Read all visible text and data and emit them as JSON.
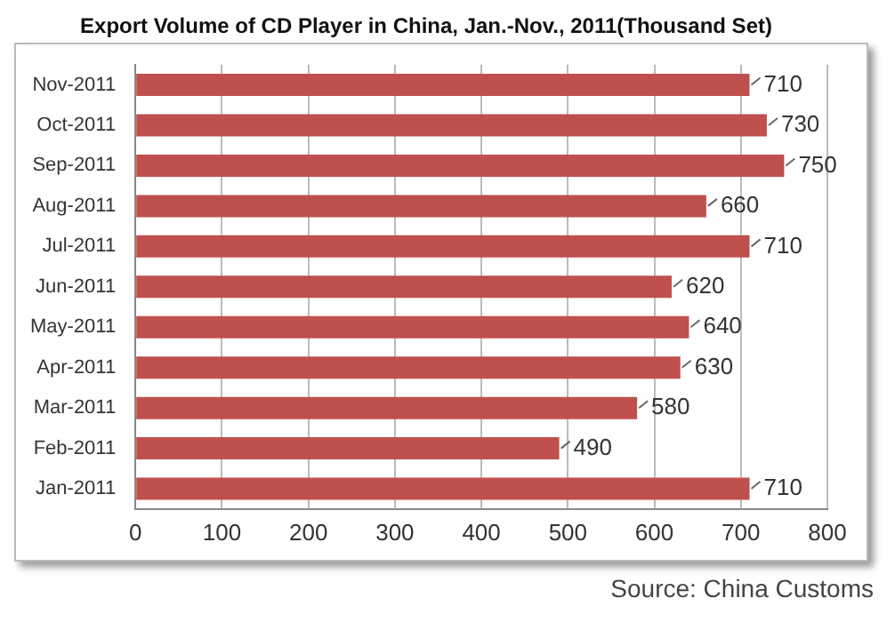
{
  "chart_data": {
    "type": "bar",
    "orientation": "horizontal",
    "title": "Export Volume of CD Player in China, Jan.-Nov., 2011(Thousand Set)",
    "categories": [
      "Nov-2011",
      "Oct-2011",
      "Sep-2011",
      "Aug-2011",
      "Jul-2011",
      "Jun-2011",
      "May-2011",
      "Apr-2011",
      "Mar-2011",
      "Feb-2011",
      "Jan-2011"
    ],
    "values": [
      710,
      730,
      750,
      660,
      710,
      620,
      640,
      630,
      580,
      490,
      710
    ],
    "color": "#c0504d",
    "xlim": [
      0,
      800
    ],
    "xticks": [
      0,
      100,
      200,
      300,
      400,
      500,
      600,
      700,
      800
    ],
    "grid": "x",
    "data_labels": true,
    "legend": false,
    "annotations": [
      "Source: China Customs"
    ]
  }
}
